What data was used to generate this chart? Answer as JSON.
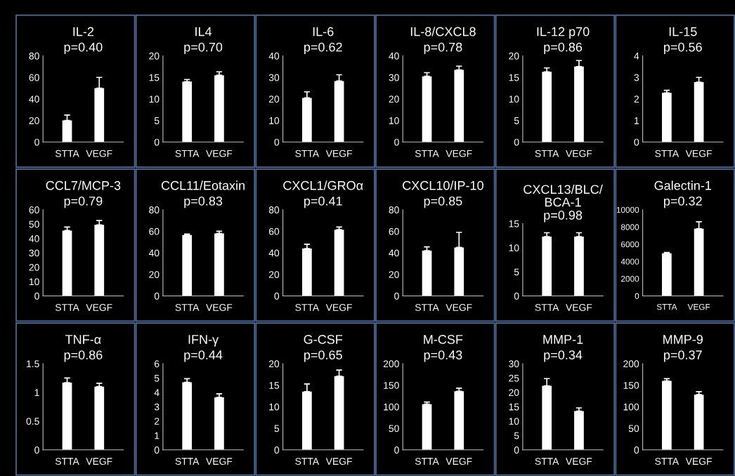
{
  "chart_data": [
    {
      "type": "bar",
      "title": "IL-2",
      "subtitle": "p=0.40",
      "categories": [
        "STTA",
        "VEGF"
      ],
      "values": [
        20,
        50
      ],
      "errors": [
        [
          20,
          25
        ],
        [
          50,
          60
        ]
      ],
      "color": "#ffffff",
      "ylim": [
        0,
        80
      ],
      "yticks": [
        0,
        20,
        40,
        60,
        80
      ],
      "grid": false
    },
    {
      "type": "bar",
      "title": "IL4",
      "subtitle": "p=0.70",
      "categories": [
        "STTA",
        "VEGF"
      ],
      "values": [
        14,
        15.5
      ],
      "errors": [
        [
          14,
          14.5
        ],
        [
          15.5,
          16.3
        ]
      ],
      "color": "#ffffff",
      "ylim": [
        0,
        20
      ],
      "yticks": [
        0,
        5,
        10,
        15,
        20
      ],
      "grid": false
    },
    {
      "type": "bar",
      "title": "IL-6",
      "subtitle": "p=0.62",
      "categories": [
        "STTA",
        "VEGF"
      ],
      "values": [
        20.5,
        28.3
      ],
      "errors": [
        [
          20.5,
          23.3
        ],
        [
          28.3,
          31.2
        ]
      ],
      "color": "#ffffff",
      "ylim": [
        0,
        40
      ],
      "yticks": [
        0,
        10,
        20,
        30,
        40
      ],
      "grid": false
    },
    {
      "type": "bar",
      "title": "IL-8/CXCL8",
      "subtitle": "p=0.78",
      "categories": [
        "STTA",
        "VEGF"
      ],
      "values": [
        30.5,
        33.5
      ],
      "errors": [
        [
          30.5,
          32.2
        ],
        [
          33.5,
          35.2
        ]
      ],
      "color": "#ffffff",
      "ylim": [
        0,
        40
      ],
      "yticks": [
        0,
        10,
        20,
        30,
        40
      ],
      "grid": false
    },
    {
      "type": "bar",
      "title": "IL-12 p70",
      "subtitle": "p=0.86",
      "categories": [
        "STTA",
        "VEGF"
      ],
      "values": [
        16.3,
        17.5
      ],
      "errors": [
        [
          16.3,
          17.2
        ],
        [
          17.5,
          18.9
        ]
      ],
      "color": "#ffffff",
      "ylim": [
        0,
        20
      ],
      "yticks": [
        0,
        5,
        10,
        15,
        20
      ],
      "grid": false
    },
    {
      "type": "bar",
      "title": "IL-15",
      "subtitle": "p=0.56",
      "categories": [
        "STTA",
        "VEGF"
      ],
      "values": [
        2.28,
        2.78
      ],
      "errors": [
        [
          2.28,
          2.4
        ],
        [
          2.78,
          3.0
        ]
      ],
      "color": "#ffffff",
      "ylim": [
        0,
        4
      ],
      "yticks": [
        0,
        1,
        2,
        3,
        4
      ],
      "grid": false
    },
    {
      "type": "bar",
      "title": "CCL7/MCP-3",
      "subtitle": "p=0.79",
      "categories": [
        "STTA",
        "VEGF"
      ],
      "values": [
        45.5,
        49.5
      ],
      "errors": [
        [
          45.5,
          48
        ],
        [
          49.5,
          52.5
        ]
      ],
      "color": "#ffffff",
      "ylim": [
        0,
        60
      ],
      "yticks": [
        0,
        10,
        20,
        30,
        40,
        50,
        60
      ],
      "grid": false
    },
    {
      "type": "bar",
      "title": "CCL11/Eotaxin",
      "subtitle": "p=0.83",
      "categories": [
        "STTA",
        "VEGF"
      ],
      "values": [
        56.5,
        58
      ],
      "errors": [
        [
          56.5,
          57.5
        ],
        [
          58,
          60
        ]
      ],
      "color": "#ffffff",
      "ylim": [
        0,
        80
      ],
      "yticks": [
        0,
        20,
        40,
        60,
        80
      ],
      "grid": false
    },
    {
      "type": "bar",
      "title": "CXCL1/GROα",
      "subtitle": "p=0.41",
      "categories": [
        "STTA",
        "VEGF"
      ],
      "values": [
        44,
        61.5
      ],
      "errors": [
        [
          44,
          48
        ],
        [
          61.5,
          64
        ]
      ],
      "color": "#ffffff",
      "ylim": [
        0,
        80
      ],
      "yticks": [
        0,
        20,
        40,
        60,
        80
      ],
      "grid": false
    },
    {
      "type": "bar",
      "title": "CXCL10/IP-10",
      "subtitle": "p=0.85",
      "categories": [
        "STTA",
        "VEGF"
      ],
      "values": [
        42,
        45
      ],
      "errors": [
        [
          42,
          45.5
        ],
        [
          45,
          59
        ]
      ],
      "color": "#ffffff",
      "ylim": [
        0,
        80
      ],
      "yticks": [
        0,
        20,
        40,
        60,
        80
      ],
      "grid": false
    },
    {
      "type": "bar",
      "title": "CXCL13/BLC/\nBCA-1",
      "subtitle": "p=0.98",
      "categories": [
        "STTA",
        "VEGF"
      ],
      "values": [
        12.3,
        12.3
      ],
      "errors": [
        [
          12.3,
          13.1
        ],
        [
          12.3,
          13.1
        ]
      ],
      "color": "#ffffff",
      "ylim": [
        0,
        15
      ],
      "yticks": [
        0,
        5,
        10,
        15
      ],
      "grid": false
    },
    {
      "type": "bar",
      "title": "Galectin-1",
      "subtitle": "p=0.32",
      "categories": [
        "STTA",
        "VEGF"
      ],
      "values": [
        4950,
        7800
      ],
      "errors": [
        [
          4950,
          5050
        ],
        [
          7800,
          8600
        ]
      ],
      "color": "#ffffff",
      "ylim": [
        0,
        10000
      ],
      "yticks": [
        0,
        2000,
        4000,
        6000,
        8000,
        10000
      ],
      "grid": false
    },
    {
      "type": "bar",
      "title": "TNF-α",
      "subtitle": "p=0.86",
      "categories": [
        "STTA",
        "VEGF"
      ],
      "values": [
        1.17,
        1.1
      ],
      "errors": [
        [
          1.17,
          1.25
        ],
        [
          1.1,
          1.16
        ]
      ],
      "color": "#ffffff",
      "ylim": [
        0,
        1.5
      ],
      "yticks": [
        0,
        0.5,
        1,
        1.5
      ],
      "grid": false
    },
    {
      "type": "bar",
      "title": "IFN-γ",
      "subtitle": "p=0.44",
      "categories": [
        "STTA",
        "VEGF"
      ],
      "values": [
        4.7,
        3.65
      ],
      "errors": [
        [
          4.7,
          4.95
        ],
        [
          3.65,
          3.9
        ]
      ],
      "color": "#ffffff",
      "ylim": [
        0,
        6
      ],
      "yticks": [
        0,
        1,
        2,
        3,
        4,
        5,
        6
      ],
      "grid": false
    },
    {
      "type": "bar",
      "title": "G-CSF",
      "subtitle": "p=0.65",
      "categories": [
        "STTA",
        "VEGF"
      ],
      "values": [
        13.5,
        17.1
      ],
      "errors": [
        [
          13.5,
          15.3
        ],
        [
          17.1,
          18.5
        ]
      ],
      "color": "#ffffff",
      "ylim": [
        0,
        20
      ],
      "yticks": [
        0,
        5,
        10,
        15,
        20
      ],
      "grid": false
    },
    {
      "type": "bar",
      "title": "M-CSF",
      "subtitle": "p=0.43",
      "categories": [
        "STTA",
        "VEGF"
      ],
      "values": [
        106,
        136
      ],
      "errors": [
        [
          106,
          111
        ],
        [
          136,
          143
        ]
      ],
      "color": "#ffffff",
      "ylim": [
        0,
        200
      ],
      "yticks": [
        0,
        50,
        100,
        150,
        200
      ],
      "grid": false
    },
    {
      "type": "bar",
      "title": "MMP-1",
      "subtitle": "p=0.34",
      "categories": [
        "STTA",
        "VEGF"
      ],
      "values": [
        22.3,
        13.5
      ],
      "errors": [
        [
          22.3,
          24.8
        ],
        [
          13.5,
          14.6
        ]
      ],
      "color": "#ffffff",
      "ylim": [
        0,
        30
      ],
      "yticks": [
        0,
        5,
        10,
        15,
        20,
        25,
        30
      ],
      "grid": false
    },
    {
      "type": "bar",
      "title": "MMP-9",
      "subtitle": "p=0.37",
      "categories": [
        "STTA",
        "VEGF"
      ],
      "values": [
        160,
        128
      ],
      "errors": [
        [
          160,
          165
        ],
        [
          128,
          135
        ]
      ],
      "color": "#ffffff",
      "ylim": [
        0,
        200
      ],
      "yticks": [
        0,
        50,
        100,
        150,
        200
      ],
      "grid": false
    }
  ]
}
